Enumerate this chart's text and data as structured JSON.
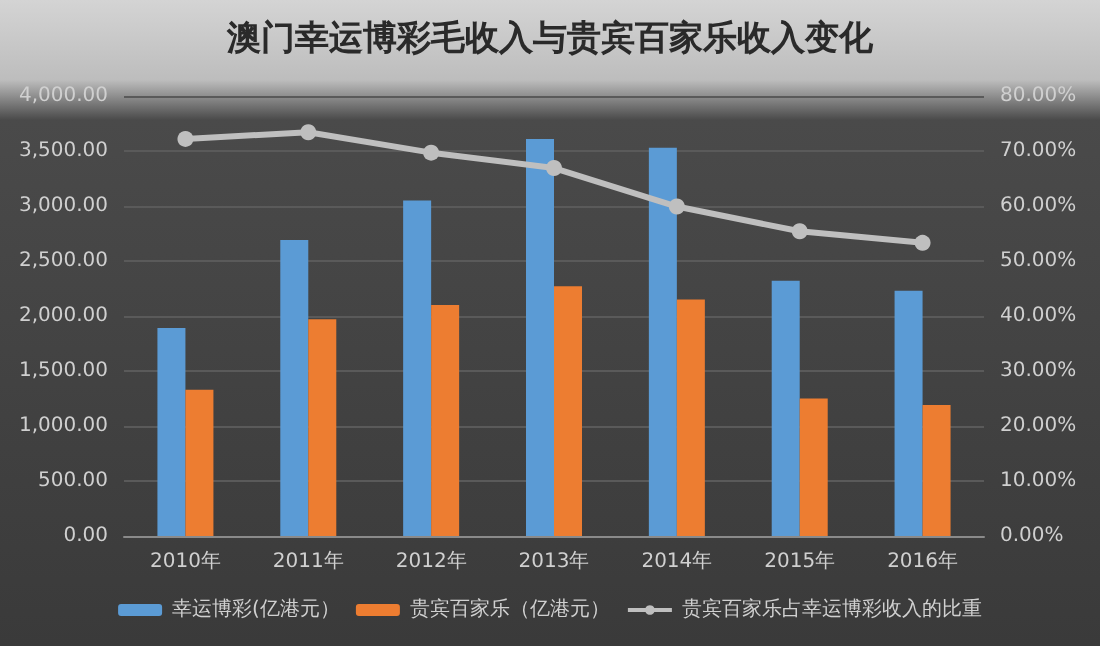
{
  "chart_data": {
    "type": "bar",
    "title": "澳门幸运博彩毛收入与贵宾百家乐收入变化",
    "categories": [
      "2010年",
      "2011年",
      "2012年",
      "2013年",
      "2014年",
      "2015年",
      "2016年"
    ],
    "series": [
      {
        "name": "幸运博彩(亿港元）",
        "color": "#5b9bd5",
        "values": [
          1890,
          2690,
          3050,
          3610,
          3530,
          2320,
          2230
        ]
      },
      {
        "name": "贵宾百家乐（亿港元）",
        "color": "#ed7d31",
        "values": [
          1330,
          1970,
          2100,
          2270,
          2150,
          1250,
          1190
        ]
      },
      {
        "name": "贵宾百家乐占幸运博彩收入的比重",
        "type": "line",
        "axis": "y2",
        "color": "#bfbfbf",
        "marker": "circle",
        "values": [
          72.2,
          73.4,
          69.7,
          66.9,
          59.9,
          55.4,
          53.3
        ]
      }
    ],
    "ylim": [
      0,
      4000
    ],
    "yticks": [
      {
        "value": 0,
        "label": "0.00"
      },
      {
        "value": 500,
        "label": "500.00"
      },
      {
        "value": 1000,
        "label": "1,000.00"
      },
      {
        "value": 1500,
        "label": "1,500.00"
      },
      {
        "value": 2000,
        "label": "2,000.00"
      },
      {
        "value": 2500,
        "label": "2,500.00"
      },
      {
        "value": 3000,
        "label": "3,000.00"
      },
      {
        "value": 3500,
        "label": "3,500.00"
      },
      {
        "value": 4000,
        "label": "4,000.00"
      }
    ],
    "y2lim": [
      0,
      80
    ],
    "y2ticks": [
      {
        "value": 0,
        "label": "0.00%"
      },
      {
        "value": 10,
        "label": "10.00%"
      },
      {
        "value": 20,
        "label": "20.00%"
      },
      {
        "value": 30,
        "label": "30.00%"
      },
      {
        "value": 40,
        "label": "40.00%"
      },
      {
        "value": 50,
        "label": "50.00%"
      },
      {
        "value": 60,
        "label": "60.00%"
      },
      {
        "value": 70,
        "label": "70.00%"
      },
      {
        "value": 80,
        "label": "80.00%"
      }
    ],
    "grid": "y",
    "legend": "bottom"
  }
}
